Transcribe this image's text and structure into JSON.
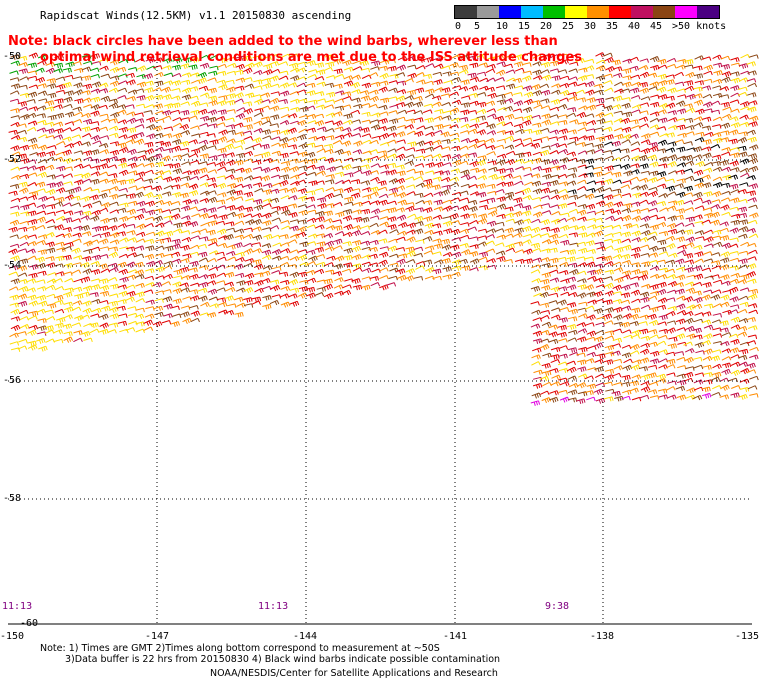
{
  "title": "Rapidscat Winds(12.5KM) v1.1 20150830 ascending",
  "legend": {
    "labels": [
      "0",
      "5",
      "10",
      "15",
      "20",
      "25",
      "30",
      "35",
      "40",
      "45",
      ">50 knots"
    ],
    "colors": [
      "#3c3c3c",
      "#9a9a9a",
      "#0000ff",
      "#00bcff",
      "#00c000",
      "#ffff00",
      "#ff9000",
      "#ff0000",
      "#c01060",
      "#8b4513",
      "#ff00ff",
      "#4b0082"
    ]
  },
  "note": {
    "line1": "Note: black circles have been added to the wind barbs, wherever less than",
    "line2": "optimal wind retrieval conditions are met due to the ISS attitude changes"
  },
  "map": {
    "lat_labels": [
      "-50",
      "-52",
      "-54",
      "-56",
      "-58",
      "-60"
    ],
    "lon_labels": [
      "-150",
      "-147",
      "-144",
      "-141",
      "-138",
      "-135"
    ],
    "time_labels": [
      "11:13",
      "11:13",
      "9:38"
    ],
    "barb_colors": {
      "yellow": "#ffdd00",
      "orange": "#ff8c00",
      "red": "#e00000",
      "crimson": "#c0104a",
      "brown": "#8b4513",
      "green": "#00a000",
      "magenta": "#e000e0",
      "black": "#000000"
    }
  },
  "footer": {
    "line1": "Note: 1) Times are GMT 2)Times along bottom correspond to measurement at ~50S",
    "line2": "3)Data buffer is 22 hrs from 20150830 4) Black wind barbs indicate possible contamination",
    "credit": "NOAA/NESDIS/Center for Satellite Applications and Research"
  }
}
